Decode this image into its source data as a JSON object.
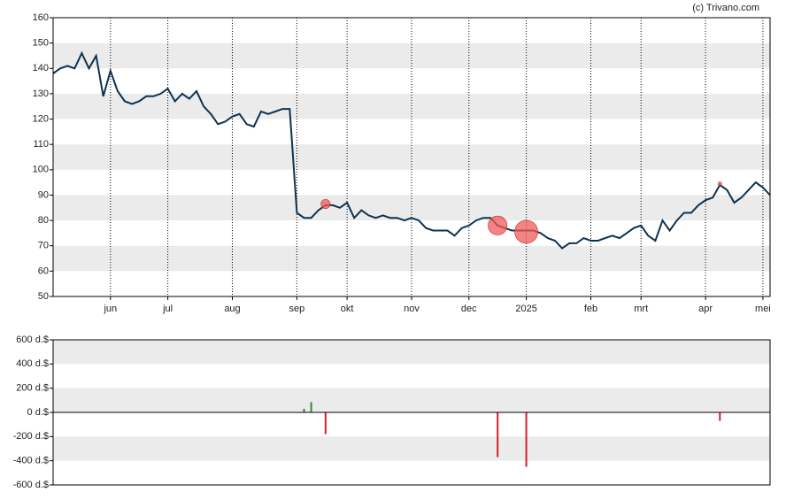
{
  "watermark": "(c) Trivano.com",
  "chart_data": [
    {
      "type": "line",
      "categories": [
        null,
        null,
        null,
        null,
        null,
        null,
        null,
        null,
        "jun",
        null,
        null,
        null,
        null,
        null,
        null,
        null,
        "jul",
        null,
        null,
        null,
        null,
        null,
        null,
        null,
        null,
        "aug",
        null,
        null,
        null,
        null,
        null,
        null,
        null,
        null,
        "sep",
        null,
        null,
        null,
        null,
        null,
        null,
        "okt",
        null,
        null,
        null,
        null,
        null,
        null,
        null,
        null,
        "nov",
        null,
        null,
        null,
        null,
        null,
        null,
        null,
        "dec",
        null,
        null,
        null,
        null,
        null,
        null,
        null,
        "2025",
        null,
        null,
        null,
        null,
        null,
        null,
        null,
        null,
        "feb",
        null,
        null,
        null,
        null,
        null,
        null,
        "mrt",
        null,
        null,
        null,
        null,
        null,
        null,
        null,
        null,
        "apr",
        null,
        null,
        null,
        null,
        null,
        null,
        null,
        "mei",
        null
      ],
      "series": [
        {
          "type": "line",
          "color": "#0d3350",
          "values": [
            138,
            140,
            141,
            140,
            146,
            140,
            145,
            129,
            139,
            131,
            127,
            126,
            127,
            129,
            129,
            130,
            132,
            127,
            130,
            128,
            131,
            125,
            122,
            118,
            119,
            121,
            122,
            118,
            117,
            123,
            122,
            123,
            124,
            124,
            83,
            81,
            81,
            84,
            86,
            86,
            85,
            87,
            81,
            84,
            82,
            81,
            82,
            81,
            81,
            80,
            81,
            80,
            77,
            76,
            76,
            76,
            74,
            77,
            78,
            80,
            81,
            81,
            78,
            77,
            76,
            76,
            76,
            76,
            75,
            73,
            72,
            69,
            71,
            71,
            73,
            72,
            72,
            73,
            74,
            73,
            75,
            77,
            78,
            74,
            72,
            80,
            76,
            80,
            83,
            83,
            86,
            88,
            89,
            94,
            92,
            87,
            89,
            92,
            95,
            93,
            90
          ]
        },
        {
          "type": "scatter",
          "color": "#f05a5a",
          "values": [
            null,
            null,
            null,
            null,
            null,
            null,
            null,
            null,
            null,
            null,
            null,
            null,
            null,
            null,
            null,
            null,
            null,
            null,
            null,
            null,
            null,
            null,
            null,
            null,
            null,
            null,
            null,
            null,
            null,
            null,
            null,
            null,
            null,
            null,
            null,
            null,
            null,
            null,
            86.5,
            null,
            null,
            null,
            null,
            null,
            null,
            null,
            null,
            null,
            null,
            null,
            null,
            null,
            null,
            null,
            null,
            null,
            null,
            null,
            null,
            null,
            null,
            null,
            78,
            null,
            null,
            null,
            75.5,
            null,
            null,
            null,
            null,
            null,
            null,
            null,
            null,
            null,
            null,
            null,
            null,
            null,
            null,
            null,
            null,
            null,
            null,
            null,
            null,
            null,
            null,
            null,
            null,
            null,
            null,
            94.5,
            null,
            null,
            null,
            null,
            null,
            null,
            null
          ]
        }
      ],
      "ylim": [
        50,
        160
      ],
      "yticks": [
        50,
        60,
        70,
        80,
        90,
        100,
        110,
        120,
        130,
        140,
        150,
        160
      ],
      "bands": true,
      "band_color": "#ebebeb"
    },
    {
      "type": "bar",
      "values": [
        null,
        null,
        null,
        null,
        null,
        null,
        null,
        null,
        null,
        null,
        null,
        null,
        null,
        null,
        null,
        null,
        null,
        null,
        null,
        null,
        null,
        null,
        null,
        null,
        null,
        null,
        null,
        null,
        null,
        null,
        null,
        null,
        null,
        null,
        null,
        30,
        85,
        null,
        -180,
        null,
        null,
        null,
        null,
        null,
        null,
        null,
        null,
        null,
        null,
        null,
        null,
        null,
        null,
        null,
        null,
        null,
        null,
        null,
        null,
        null,
        null,
        null,
        -370,
        null,
        null,
        null,
        -450,
        null,
        null,
        null,
        null,
        null,
        null,
        null,
        null,
        null,
        null,
        null,
        null,
        null,
        null,
        null,
        null,
        null,
        null,
        null,
        null,
        null,
        null,
        null,
        null,
        null,
        null,
        -70,
        null,
        null,
        null,
        null,
        null,
        null,
        null
      ],
      "color_positive": "#2e8b2e",
      "color_negative": "#d0202a",
      "ylim": [
        -600,
        600
      ],
      "yticks": [
        {
          "value": -600,
          "label": "-600 d.$"
        },
        {
          "value": -400,
          "label": "-400 d.$"
        },
        {
          "value": -200,
          "label": "-200 d.$"
        },
        {
          "value": 0,
          "label": "0 d.$"
        },
        {
          "value": 200,
          "label": "200 d.$"
        },
        {
          "value": 400,
          "label": "400 d.$"
        },
        {
          "value": 600,
          "label": "600 d.$"
        }
      ],
      "bands": true,
      "band_color": "#ebebeb"
    }
  ]
}
